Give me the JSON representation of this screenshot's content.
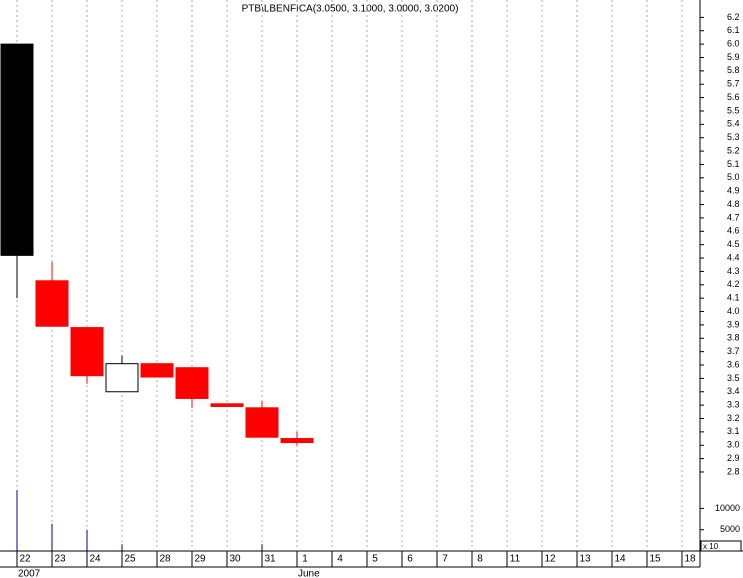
{
  "chart_data": {
    "type": "candlestick",
    "title": "PTB\\LBENFICA(3.0500, 3.1000, 3.0000, 3.0200)",
    "categories": [
      "22",
      "23",
      "24",
      "25",
      "28",
      "29",
      "30",
      "31",
      "1",
      "4",
      "5",
      "6",
      "7",
      "8",
      "11",
      "12",
      "13",
      "14",
      "15",
      "18"
    ],
    "x_secondary": [
      "2007",
      null,
      null,
      null,
      null,
      null,
      null,
      null,
      "June",
      null,
      null,
      null,
      null,
      null,
      null,
      null,
      null,
      null,
      null,
      null
    ],
    "open": [
      6.0,
      4.23,
      3.88,
      3.4,
      3.61,
      3.58,
      3.31,
      3.28,
      3.05,
      null,
      null,
      null,
      null,
      null,
      null,
      null,
      null,
      null,
      null,
      null
    ],
    "high": [
      6.0,
      4.37,
      3.88,
      3.67,
      3.61,
      3.58,
      3.31,
      3.33,
      3.1,
      null,
      null,
      null,
      null,
      null,
      null,
      null,
      null,
      null,
      null,
      null
    ],
    "low": [
      4.1,
      3.89,
      3.46,
      3.4,
      3.51,
      3.28,
      3.29,
      3.06,
      3.0,
      null,
      null,
      null,
      null,
      null,
      null,
      null,
      null,
      null,
      null,
      null
    ],
    "close": [
      4.42,
      3.89,
      3.52,
      3.61,
      3.51,
      3.35,
      3.29,
      3.06,
      3.02,
      null,
      null,
      null,
      null,
      null,
      null,
      null,
      null,
      null,
      null,
      null
    ],
    "candle_colors": [
      "#000000",
      "#ff0000",
      "#ff0000",
      "#ffffff",
      "#ff0000",
      "#ff0000",
      "#ff0000",
      "#ff0000",
      "#ff0000",
      null,
      null,
      null,
      null,
      null,
      null,
      null,
      null,
      null,
      null,
      null
    ],
    "volume": [
      14300,
      6400,
      5000,
      1600,
      null,
      null,
      null,
      1600,
      null,
      null,
      null,
      null,
      null,
      null,
      null,
      null,
      null,
      null,
      null,
      null
    ],
    "volume_color": "#0000aa",
    "ylim": [
      2.74,
      6.33
    ],
    "yticks": [
      2.8,
      2.9,
      {
        "value": 3.0,
        "label": "3.0"
      },
      3.1,
      3.2,
      3.3,
      3.4,
      3.5,
      3.6,
      3.7,
      3.8,
      3.9,
      {
        "value": 4.0,
        "label": "4.0"
      },
      4.1,
      4.2,
      4.3,
      4.4,
      4.5,
      4.6,
      4.7,
      4.8,
      4.9,
      {
        "value": 5.0,
        "label": "5.0"
      },
      5.1,
      5.2,
      5.3,
      5.4,
      5.5,
      5.6,
      5.7,
      5.8,
      5.9,
      {
        "value": 6.0,
        "label": "6.0"
      },
      6.1,
      6.2
    ],
    "y2lim": [
      0,
      15500
    ],
    "y2ticks": [
      5000,
      10000
    ],
    "y2_multiplier": "x 10",
    "grid": true
  }
}
